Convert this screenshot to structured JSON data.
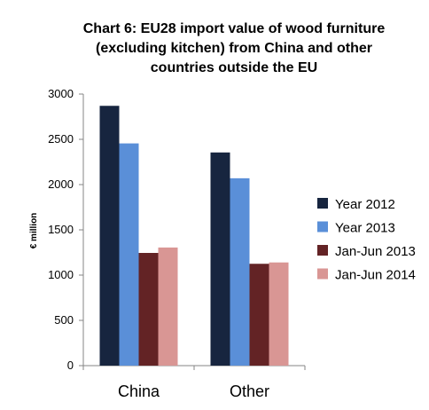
{
  "chart_data": {
    "type": "bar",
    "title_lines": [
      "Chart 6: EU28 import value of wood furniture",
      "(excluding kitchen) from China  and other",
      "countries outside the EU"
    ],
    "ylabel": "€ million",
    "xlabel": "",
    "categories": [
      "China",
      "Other"
    ],
    "ylim": [
      0,
      3000
    ],
    "yticks": [
      0,
      500,
      1000,
      1500,
      2000,
      2500,
      3000
    ],
    "grid": false,
    "legend_position": "right",
    "series": [
      {
        "name": "Year 2012",
        "color": "#17253f",
        "values": [
          2870,
          2355
        ]
      },
      {
        "name": "Year 2013",
        "color": "#5a8fd8",
        "values": [
          2455,
          2070
        ]
      },
      {
        "name": "Jan-Jun 2013",
        "color": "#632325",
        "values": [
          1245,
          1125
        ]
      },
      {
        "name": "Jan-Jun 2014",
        "color": "#d99694",
        "values": [
          1305,
          1140
        ]
      }
    ]
  }
}
